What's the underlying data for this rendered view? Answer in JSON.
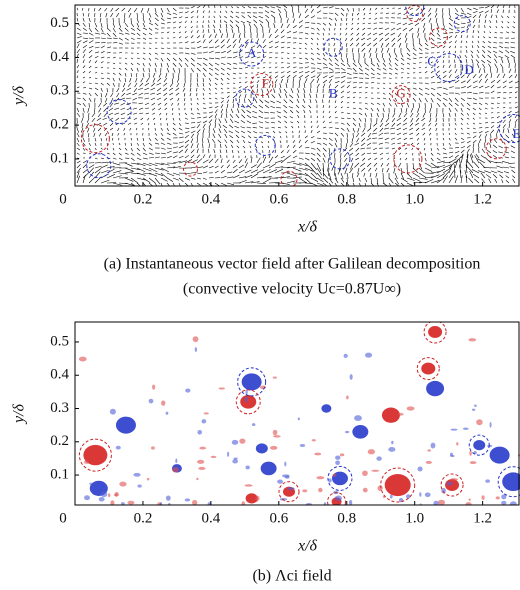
{
  "chart_data": [
    {
      "type": "vector-field",
      "xlabel": "x/δ",
      "ylabel": "y/δ",
      "caption": [
        "(a) Instantaneous vector field after Galilean decomposition",
        "(convective velocity Uc=0.87U∞)"
      ],
      "xlim": [
        0,
        1.31
      ],
      "ylim": [
        0.02,
        0.555
      ],
      "xticks": [
        0,
        0.2,
        0.4,
        0.6,
        0.8,
        {
          "value": 1,
          "label": "1.0"
        },
        1.2
      ],
      "yticks": [
        0.1,
        0.2,
        0.3,
        0.4,
        0.5
      ],
      "annotations": [
        {
          "text": "A",
          "x": 0.52,
          "y": 0.41,
          "color": "#2233cc"
        },
        {
          "text": "B",
          "x": 0.76,
          "y": 0.29,
          "color": "#2233cc"
        },
        {
          "text": "C",
          "x": 1.05,
          "y": 0.385,
          "color": "#2233cc"
        },
        {
          "text": "D",
          "x": 1.16,
          "y": 0.36,
          "color": "#2233cc"
        },
        {
          "text": "E",
          "x": 1.3,
          "y": 0.17,
          "color": "#2233cc"
        },
        {
          "text": "F",
          "x": 0.56,
          "y": 0.32,
          "color": "#cc2222"
        },
        {
          "text": "G",
          "x": 0.96,
          "y": 0.29,
          "color": "#cc2222"
        }
      ]
    },
    {
      "type": "heatmap",
      "xlabel": "x/δ",
      "ylabel": "y/δ",
      "caption": [
        "(b) Λci field"
      ],
      "xlim": [
        0,
        1.31
      ],
      "ylim": [
        0.01,
        0.56
      ],
      "xticks": [
        0,
        0.2,
        0.4,
        0.6,
        0.8,
        {
          "value": 1,
          "label": "1.0"
        },
        1.2
      ],
      "yticks": [
        0.1,
        0.2,
        0.3,
        0.4,
        0.5
      ]
    }
  ]
}
